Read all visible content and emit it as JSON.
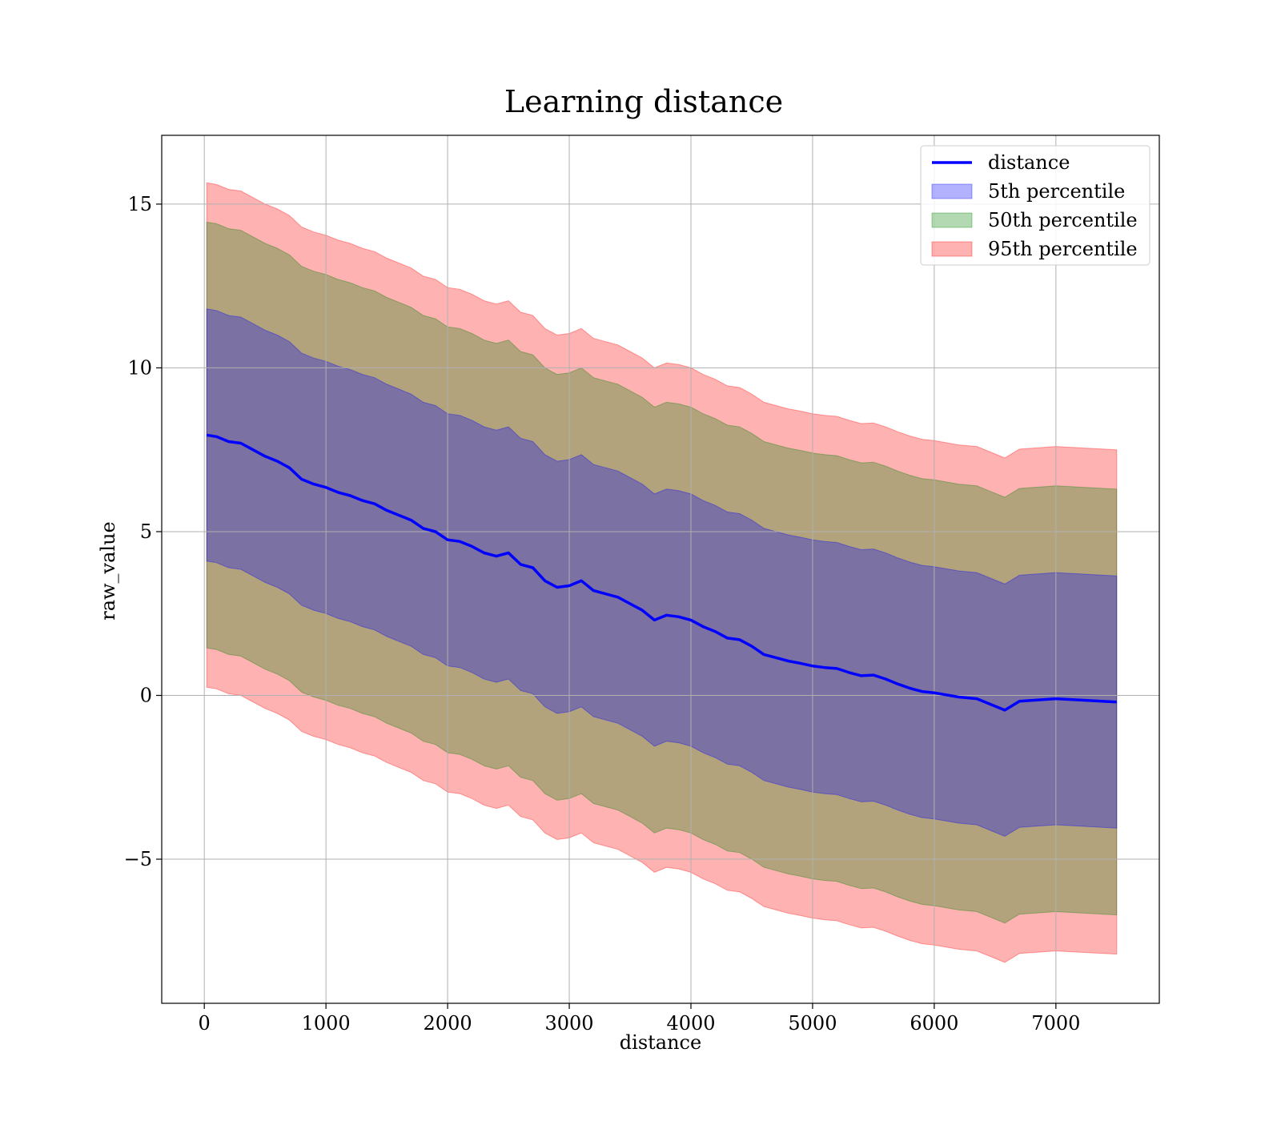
{
  "chart_data": {
    "type": "area",
    "title": "Learning distance",
    "xlabel": "distance",
    "ylabel": "raw_value",
    "xlim": [
      -350,
      7850
    ],
    "ylim": [
      -9.4,
      17.1
    ],
    "xticks": [
      0,
      1000,
      2000,
      3000,
      4000,
      5000,
      6000,
      7000
    ],
    "yticks": [
      -5,
      0,
      5,
      10,
      15
    ],
    "ytick_labels": [
      "−5",
      "0",
      "5",
      "10",
      "15"
    ],
    "grid": true,
    "legend_position": "top-right",
    "x": [
      20,
      100,
      200,
      300,
      400,
      500,
      600,
      700,
      800,
      900,
      1000,
      1100,
      1200,
      1300,
      1400,
      1500,
      1600,
      1700,
      1800,
      1900,
      2000,
      2100,
      2200,
      2300,
      2400,
      2500,
      2600,
      2700,
      2800,
      2900,
      3000,
      3100,
      3200,
      3300,
      3400,
      3500,
      3600,
      3700,
      3800,
      3900,
      4000,
      4100,
      4200,
      4300,
      4400,
      4500,
      4600,
      4700,
      4800,
      4900,
      5000,
      5100,
      5200,
      5300,
      5400,
      5500,
      5600,
      5700,
      5800,
      5900,
      6000,
      6200,
      6350,
      6580,
      6700,
      7000,
      7500
    ],
    "series": [
      {
        "name": "distance",
        "kind": "line",
        "color": "#0000ff",
        "values": [
          7.95,
          7.9,
          7.75,
          7.7,
          7.5,
          7.3,
          7.15,
          6.95,
          6.6,
          6.45,
          6.35,
          6.2,
          6.1,
          5.95,
          5.85,
          5.65,
          5.5,
          5.35,
          5.1,
          5.0,
          4.75,
          4.7,
          4.55,
          4.35,
          4.25,
          4.35,
          4.0,
          3.9,
          3.5,
          3.3,
          3.35,
          3.5,
          3.2,
          3.1,
          3.0,
          2.8,
          2.6,
          2.3,
          2.45,
          2.4,
          2.3,
          2.1,
          1.95,
          1.75,
          1.7,
          1.5,
          1.25,
          1.15,
          1.05,
          0.98,
          0.9,
          0.85,
          0.82,
          0.7,
          0.6,
          0.62,
          0.5,
          0.35,
          0.22,
          0.12,
          0.08,
          -0.05,
          -0.1,
          -0.45,
          -0.18,
          -0.1,
          -0.2
        ]
      },
      {
        "name": "5th percentile",
        "kind": "band",
        "color": "#0000ff",
        "inner": true,
        "upper": [
          11.8,
          11.75,
          11.6,
          11.55,
          11.35,
          11.15,
          11.0,
          10.8,
          10.45,
          10.3,
          10.2,
          10.05,
          9.95,
          9.8,
          9.7,
          9.5,
          9.35,
          9.2,
          8.95,
          8.85,
          8.6,
          8.55,
          8.4,
          8.2,
          8.1,
          8.2,
          7.85,
          7.75,
          7.35,
          7.15,
          7.2,
          7.35,
          7.05,
          6.95,
          6.85,
          6.65,
          6.45,
          6.15,
          6.3,
          6.25,
          6.15,
          5.95,
          5.8,
          5.6,
          5.55,
          5.35,
          5.1,
          5.0,
          4.9,
          4.83,
          4.75,
          4.7,
          4.67,
          4.55,
          4.45,
          4.47,
          4.35,
          4.2,
          4.07,
          3.97,
          3.93,
          3.8,
          3.75,
          3.4,
          3.67,
          3.75,
          3.65
        ],
        "lower": [
          4.1,
          4.05,
          3.9,
          3.85,
          3.65,
          3.45,
          3.3,
          3.1,
          2.75,
          2.6,
          2.5,
          2.35,
          2.25,
          2.1,
          2.0,
          1.8,
          1.65,
          1.5,
          1.25,
          1.15,
          0.9,
          0.85,
          0.7,
          0.5,
          0.4,
          0.5,
          0.15,
          0.05,
          -0.35,
          -0.55,
          -0.5,
          -0.35,
          -0.65,
          -0.75,
          -0.85,
          -1.05,
          -1.25,
          -1.55,
          -1.4,
          -1.45,
          -1.55,
          -1.75,
          -1.9,
          -2.1,
          -2.15,
          -2.35,
          -2.6,
          -2.7,
          -2.8,
          -2.87,
          -2.95,
          -3.0,
          -3.03,
          -3.15,
          -3.25,
          -3.23,
          -3.35,
          -3.5,
          -3.63,
          -3.73,
          -3.77,
          -3.9,
          -3.95,
          -4.3,
          -4.03,
          -3.95,
          -4.05
        ]
      },
      {
        "name": "50th percentile",
        "kind": "band",
        "color": "#008000",
        "upper": [
          14.45,
          14.4,
          14.25,
          14.2,
          14.0,
          13.8,
          13.65,
          13.45,
          13.1,
          12.95,
          12.85,
          12.7,
          12.6,
          12.45,
          12.35,
          12.15,
          12.0,
          11.85,
          11.6,
          11.5,
          11.25,
          11.2,
          11.05,
          10.85,
          10.75,
          10.85,
          10.5,
          10.4,
          10.0,
          9.8,
          9.85,
          10.0,
          9.7,
          9.6,
          9.5,
          9.3,
          9.1,
          8.8,
          8.95,
          8.9,
          8.8,
          8.6,
          8.45,
          8.25,
          8.2,
          8.0,
          7.75,
          7.65,
          7.55,
          7.48,
          7.4,
          7.35,
          7.32,
          7.2,
          7.1,
          7.12,
          7.0,
          6.85,
          6.72,
          6.62,
          6.58,
          6.45,
          6.4,
          6.05,
          6.32,
          6.4,
          6.3
        ],
        "lower": [
          1.45,
          1.4,
          1.25,
          1.2,
          1.0,
          0.8,
          0.65,
          0.45,
          0.1,
          -0.05,
          -0.15,
          -0.3,
          -0.4,
          -0.55,
          -0.65,
          -0.85,
          -1.0,
          -1.15,
          -1.4,
          -1.5,
          -1.75,
          -1.8,
          -1.95,
          -2.15,
          -2.25,
          -2.15,
          -2.5,
          -2.6,
          -3.0,
          -3.2,
          -3.15,
          -3.0,
          -3.3,
          -3.4,
          -3.5,
          -3.7,
          -3.9,
          -4.2,
          -4.05,
          -4.1,
          -4.2,
          -4.4,
          -4.55,
          -4.75,
          -4.8,
          -5.0,
          -5.25,
          -5.35,
          -5.45,
          -5.52,
          -5.6,
          -5.65,
          -5.68,
          -5.8,
          -5.9,
          -5.88,
          -6.0,
          -6.15,
          -6.28,
          -6.38,
          -6.42,
          -6.55,
          -6.6,
          -6.95,
          -6.68,
          -6.6,
          -6.7
        ]
      },
      {
        "name": "95th percentile",
        "kind": "band",
        "color": "#ff0000",
        "upper": [
          15.65,
          15.6,
          15.45,
          15.4,
          15.2,
          15.0,
          14.85,
          14.65,
          14.3,
          14.15,
          14.05,
          13.9,
          13.8,
          13.65,
          13.55,
          13.35,
          13.2,
          13.05,
          12.8,
          12.7,
          12.45,
          12.4,
          12.25,
          12.05,
          11.95,
          12.05,
          11.7,
          11.6,
          11.2,
          11.0,
          11.05,
          11.2,
          10.9,
          10.8,
          10.7,
          10.5,
          10.3,
          10.0,
          10.15,
          10.1,
          10.0,
          9.8,
          9.65,
          9.45,
          9.4,
          9.2,
          8.95,
          8.85,
          8.75,
          8.68,
          8.6,
          8.55,
          8.52,
          8.4,
          8.3,
          8.32,
          8.2,
          8.05,
          7.92,
          7.82,
          7.78,
          7.65,
          7.6,
          7.25,
          7.52,
          7.6,
          7.5
        ],
        "lower": [
          0.25,
          0.2,
          0.05,
          0.0,
          -0.2,
          -0.4,
          -0.55,
          -0.75,
          -1.1,
          -1.25,
          -1.35,
          -1.5,
          -1.6,
          -1.75,
          -1.85,
          -2.05,
          -2.2,
          -2.35,
          -2.6,
          -2.7,
          -2.95,
          -3.0,
          -3.15,
          -3.35,
          -3.45,
          -3.35,
          -3.7,
          -3.8,
          -4.2,
          -4.4,
          -4.35,
          -4.2,
          -4.5,
          -4.6,
          -4.7,
          -4.9,
          -5.1,
          -5.4,
          -5.25,
          -5.3,
          -5.4,
          -5.6,
          -5.75,
          -5.95,
          -6.0,
          -6.2,
          -6.45,
          -6.55,
          -6.65,
          -6.72,
          -6.8,
          -6.85,
          -6.88,
          -7.0,
          -7.1,
          -7.08,
          -7.2,
          -7.35,
          -7.48,
          -7.58,
          -7.62,
          -7.75,
          -7.8,
          -8.15,
          -7.88,
          -7.8,
          -7.9
        ]
      }
    ]
  },
  "colors": {
    "line": "#0000ff",
    "band_5": "#0000ff",
    "band_50": "#008000",
    "band_95": "#ff0000",
    "grid": "#b0b0b0"
  }
}
